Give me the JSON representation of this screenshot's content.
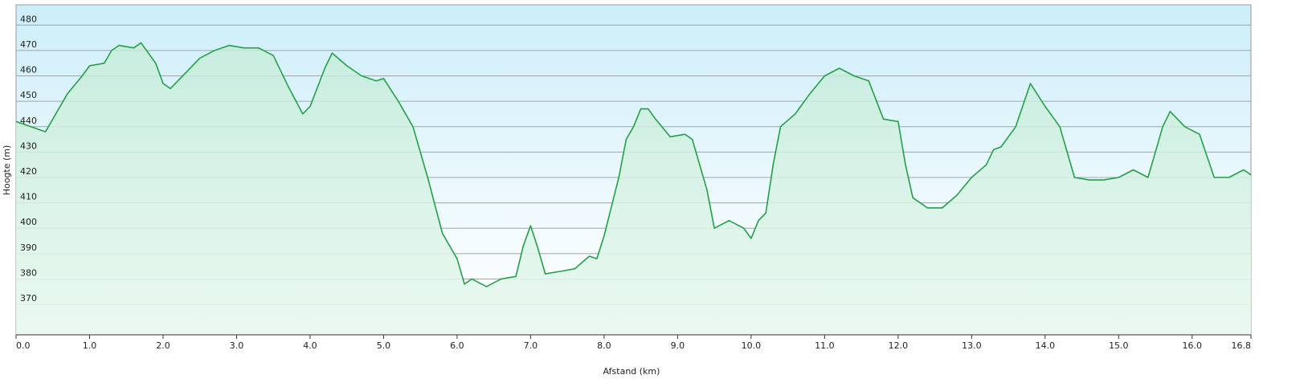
{
  "chart_data": {
    "type": "area",
    "x_label": "Afstand  (km)",
    "y_label": "Hoogte (m)",
    "x": [
      0.0,
      0.2,
      0.4,
      0.5,
      0.7,
      0.9,
      1.0,
      1.2,
      1.3,
      1.4,
      1.6,
      1.7,
      1.8,
      1.9,
      2.0,
      2.1,
      2.3,
      2.5,
      2.7,
      2.9,
      3.1,
      3.3,
      3.5,
      3.7,
      3.9,
      4.0,
      4.2,
      4.3,
      4.5,
      4.7,
      4.9,
      5.0,
      5.2,
      5.4,
      5.6,
      5.8,
      6.0,
      6.1,
      6.2,
      6.4,
      6.6,
      6.8,
      6.9,
      7.0,
      7.1,
      7.2,
      7.4,
      7.6,
      7.8,
      7.9,
      8.0,
      8.2,
      8.3,
      8.4,
      8.5,
      8.6,
      8.7,
      8.9,
      9.1,
      9.2,
      9.4,
      9.5,
      9.7,
      9.9,
      10.0,
      10.1,
      10.2,
      10.3,
      10.4,
      10.6,
      10.8,
      11.0,
      11.2,
      11.4,
      11.6,
      11.8,
      12.0,
      12.1,
      12.2,
      12.4,
      12.6,
      12.8,
      13.0,
      13.2,
      13.3,
      13.4,
      13.6,
      13.8,
      14.0,
      14.2,
      14.4,
      14.6,
      14.8,
      15.0,
      15.2,
      15.4,
      15.6,
      15.7,
      15.9,
      16.1,
      16.3,
      16.5,
      16.7,
      16.8
    ],
    "values": [
      442,
      440,
      438,
      443,
      453,
      460,
      464,
      465,
      470,
      472,
      471,
      473,
      469,
      465,
      457,
      455,
      461,
      467,
      470,
      472,
      471,
      471,
      468,
      456,
      445,
      448,
      463,
      469,
      464,
      460,
      458,
      459,
      450,
      440,
      420,
      398,
      388,
      378,
      380,
      377,
      380,
      381,
      393,
      401,
      392,
      382,
      383,
      384,
      389,
      388,
      397,
      420,
      435,
      440,
      447,
      447,
      443,
      436,
      437,
      435,
      415,
      400,
      403,
      400,
      396,
      403,
      406,
      425,
      440,
      445,
      453,
      460,
      463,
      460,
      458,
      443,
      442,
      425,
      412,
      408,
      408,
      413,
      420,
      425,
      431,
      432,
      440,
      457,
      448,
      440,
      420,
      419,
      419,
      420,
      423,
      420,
      440,
      446,
      440,
      437,
      420,
      420,
      423,
      421
    ],
    "color": "#23a045",
    "xlim": [
      0,
      16.8
    ],
    "ylim": [
      358,
      488
    ],
    "xticks": [
      {
        "value": 0,
        "label": "0.0"
      },
      {
        "value": 1,
        "label": "1.0"
      },
      {
        "value": 2,
        "label": "2.0"
      },
      {
        "value": 3,
        "label": "3.0"
      },
      {
        "value": 4,
        "label": "4.0"
      },
      {
        "value": 5,
        "label": "5.0"
      },
      {
        "value": 6,
        "label": "6.0"
      },
      {
        "value": 7,
        "label": "7.0"
      },
      {
        "value": 8,
        "label": "8.0"
      },
      {
        "value": 9,
        "label": "9.0"
      },
      {
        "value": 10,
        "label": "10.0"
      },
      {
        "value": 11,
        "label": "11.0"
      },
      {
        "value": 12,
        "label": "12.0"
      },
      {
        "value": 13,
        "label": "13.0"
      },
      {
        "value": 14,
        "label": "14.0"
      },
      {
        "value": 15,
        "label": "15.0"
      },
      {
        "value": 16,
        "label": "16.0"
      },
      16.8
    ],
    "yticks": [
      370,
      380,
      390,
      400,
      410,
      420,
      430,
      440,
      450,
      460,
      470,
      480
    ],
    "grid": true
  }
}
